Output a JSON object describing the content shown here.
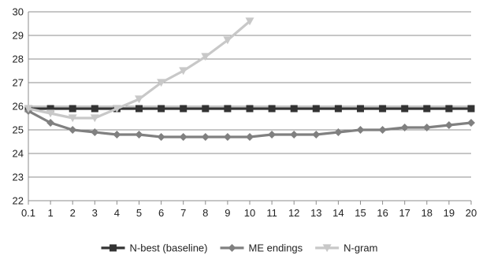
{
  "chart_data": {
    "type": "line",
    "title": "",
    "xlabel": "",
    "ylabel": "",
    "x": [
      "0.1",
      "1",
      "2",
      "3",
      "4",
      "5",
      "6",
      "7",
      "8",
      "9",
      "10",
      "11",
      "12",
      "13",
      "14",
      "15",
      "16",
      "17",
      "18",
      "19",
      "20"
    ],
    "ylim": [
      22,
      30
    ],
    "yticks": [
      22,
      23,
      24,
      25,
      26,
      27,
      28,
      29,
      30
    ],
    "grid": "horizontal",
    "legend_position": "bottom",
    "series": [
      {
        "name": "N-best (baseline)",
        "color": "#333333",
        "marker": "square",
        "values": [
          25.9,
          25.9,
          25.9,
          25.9,
          25.9,
          25.9,
          25.9,
          25.9,
          25.9,
          25.9,
          25.9,
          25.9,
          25.9,
          25.9,
          25.9,
          25.9,
          25.9,
          25.9,
          25.9,
          25.9,
          25.9
        ]
      },
      {
        "name": "ME endings",
        "color": "#808080",
        "marker": "diamond",
        "values": [
          25.8,
          25.3,
          25.0,
          24.9,
          24.8,
          24.8,
          24.7,
          24.7,
          24.7,
          24.7,
          24.7,
          24.8,
          24.8,
          24.8,
          24.9,
          25.0,
          25.0,
          25.1,
          25.1,
          25.2,
          25.3
        ]
      },
      {
        "name": "N-gram",
        "color": "#c8c8c8",
        "marker": "triangle-down",
        "values": [
          25.9,
          25.7,
          25.5,
          25.5,
          25.9,
          26.3,
          27.0,
          27.5,
          28.1,
          28.8,
          29.6,
          null,
          null,
          null,
          null,
          null,
          null,
          null,
          null,
          null,
          null
        ]
      }
    ]
  }
}
